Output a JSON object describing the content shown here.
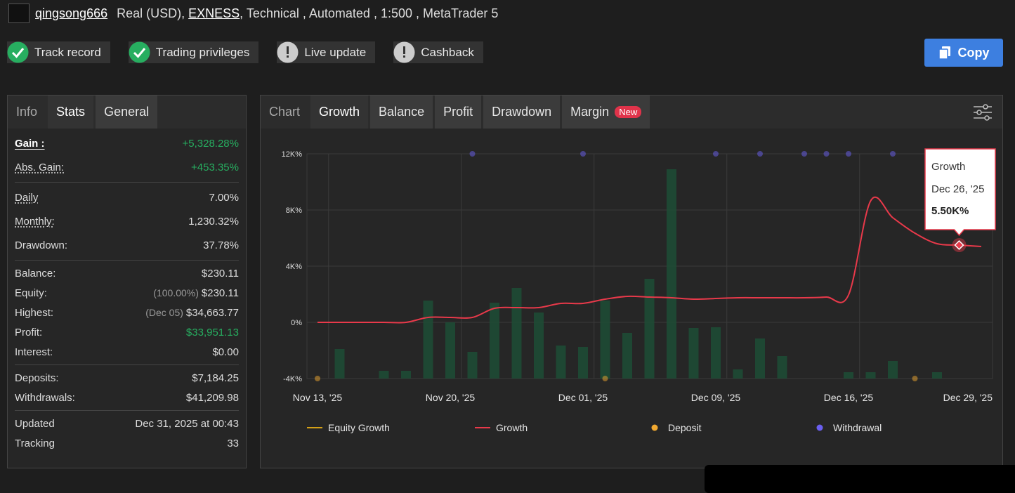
{
  "header": {
    "username": "qingsong666",
    "account_type": "Real (USD),",
    "broker": "EXNESS",
    "details": ", Technical , Automated , 1:500 , MetaTrader 5"
  },
  "badges": [
    {
      "label": "Track record",
      "status": "ok"
    },
    {
      "label": "Trading privileges",
      "status": "ok"
    },
    {
      "label": "Live update",
      "status": "warn"
    },
    {
      "label": "Cashback",
      "status": "warn"
    }
  ],
  "copy_button": "Copy",
  "left_tabs": {
    "items": [
      "Info",
      "Stats",
      "General"
    ],
    "active": "Stats"
  },
  "stats": [
    [
      {
        "label": "Gain :",
        "value": "+5,328.28%",
        "color": "#27ae60"
      },
      {
        "label": "Abs. Gain:",
        "value": "+453.35%",
        "color": "#27ae60"
      }
    ],
    [
      {
        "label": "Daily",
        "value": "7.00%"
      },
      {
        "label": "Monthly:",
        "value": "1,230.32%"
      },
      {
        "label": "Drawdown:",
        "value": "37.78%"
      }
    ],
    [
      {
        "label": "Balance:",
        "value": "$230.11"
      },
      {
        "label": "Equity:",
        "prefix": "(100.00%)",
        "value": "$230.11"
      },
      {
        "label": "Highest:",
        "prefix": "(Dec 05)",
        "value": "$34,663.77"
      },
      {
        "label": "Profit:",
        "value": "$33,951.13",
        "color": "#27ae60"
      },
      {
        "label": "Interest:",
        "value": "$0.00"
      }
    ],
    [
      {
        "label": "Deposits:",
        "value": "$7,184.25"
      },
      {
        "label": "Withdrawals:",
        "value": "$41,209.98"
      }
    ],
    [
      {
        "label": "Updated",
        "value": "Dec 31, 2025 at 00:43"
      },
      {
        "label": "Tracking",
        "value": "33"
      }
    ]
  ],
  "chart_tabs": {
    "items": [
      "Chart",
      "Growth",
      "Balance",
      "Profit",
      "Drawdown",
      "Margin"
    ],
    "active": "Growth",
    "new_badge": "New"
  },
  "chart_data": {
    "type": "line",
    "categories": [
      "Nov 13, '25",
      null,
      null,
      null,
      null,
      null,
      "Nov 20, '25",
      null,
      null,
      null,
      null,
      null,
      "Dec 01, '25",
      null,
      null,
      null,
      null,
      null,
      "Dec 09, '25",
      null,
      null,
      null,
      null,
      null,
      "Dec 16, '25",
      null,
      null,
      null,
      null,
      null,
      "Dec 29, '25"
    ],
    "ylim": [
      -4000,
      12000
    ],
    "yticks": [
      {
        "value": -4000,
        "label": "-4K%"
      },
      {
        "value": 0,
        "label": "0%"
      },
      {
        "value": 4000,
        "label": "4K%"
      },
      {
        "value": 8000,
        "label": "8K%"
      },
      {
        "value": 12000,
        "label": "12K%"
      }
    ],
    "grid": true,
    "series": [
      {
        "name": "Equity Growth",
        "color": "#d4a017",
        "style": "line",
        "values": [
          null,
          null,
          null,
          null,
          null,
          null,
          null,
          null,
          null,
          null,
          null,
          null,
          null,
          null,
          null,
          null,
          null,
          null,
          null,
          null,
          null,
          null,
          null,
          null,
          null,
          null,
          null,
          null,
          null,
          null,
          null
        ]
      },
      {
        "name": "Growth",
        "color": "#e8394a",
        "style": "line",
        "values": [
          0,
          0,
          0,
          0,
          0,
          350,
          350,
          350,
          1000,
          1050,
          1050,
          1350,
          1350,
          1650,
          1850,
          1800,
          1750,
          1650,
          1700,
          1750,
          1750,
          1750,
          1750,
          1800,
          1950,
          8650,
          7450,
          6350,
          5600,
          5500,
          5400
        ]
      },
      {
        "name": "Deposit",
        "color": "#f0a830",
        "style": "dot",
        "values": [
          -4000,
          null,
          null,
          null,
          null,
          null,
          null,
          null,
          null,
          null,
          null,
          null,
          null,
          -4000,
          null,
          null,
          null,
          null,
          null,
          null,
          null,
          null,
          null,
          null,
          null,
          null,
          null,
          -4000,
          null,
          null,
          null
        ]
      },
      {
        "name": "Withdrawal",
        "color": "#6a5ff0",
        "style": "dot",
        "values": [
          null,
          null,
          null,
          null,
          null,
          null,
          null,
          12000,
          null,
          null,
          null,
          null,
          12000,
          null,
          null,
          null,
          null,
          null,
          12000,
          null,
          12000,
          null,
          12000,
          12000,
          12000,
          null,
          12000,
          null,
          null,
          null,
          null
        ]
      }
    ],
    "bars": {
      "color": "#1d4d36",
      "values": [
        null,
        -1900,
        null,
        -3450,
        -3450,
        1550,
        0,
        -2100,
        1400,
        2450,
        700,
        -1650,
        -1750,
        1550,
        -750,
        3100,
        10900,
        -400,
        -350,
        -3350,
        -1150,
        -2400,
        null,
        null,
        -3550,
        -3550,
        -2750,
        null,
        -3550,
        null,
        null
      ]
    },
    "tooltip": {
      "title": "Growth",
      "date": "Dec 26, '25",
      "value": "5.50K%"
    }
  }
}
